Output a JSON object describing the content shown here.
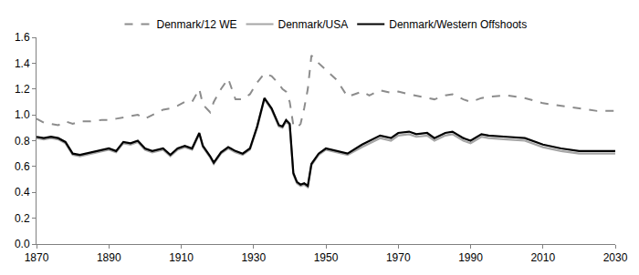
{
  "chart_data": {
    "type": "line",
    "x": [
      1870,
      1872,
      1874,
      1876,
      1878,
      1880,
      1882,
      1885,
      1888,
      1890,
      1892,
      1894,
      1896,
      1898,
      1900,
      1902,
      1905,
      1907,
      1909,
      1911,
      1913,
      1915,
      1916,
      1918,
      1919,
      1921,
      1923,
      1925,
      1927,
      1929,
      1931,
      1933,
      1935,
      1937,
      1938,
      1939,
      1940,
      1941,
      1942,
      1943,
      1944,
      1945,
      1946,
      1948,
      1950,
      1953,
      1956,
      1960,
      1962,
      1965,
      1968,
      1970,
      1973,
      1975,
      1978,
      1980,
      1983,
      1985,
      1988,
      1990,
      1993,
      1995,
      2000,
      2005,
      2010,
      2015,
      2020,
      2025,
      2030
    ],
    "series": [
      {
        "name": "Denmark/12 WE",
        "color": "#8c8c8c",
        "line_style": "dashed",
        "values": [
          0.97,
          0.94,
          0.93,
          0.92,
          0.95,
          0.93,
          0.95,
          0.95,
          0.96,
          0.96,
          0.97,
          0.98,
          0.99,
          1.0,
          0.97,
          1.0,
          1.04,
          1.05,
          1.07,
          1.1,
          1.1,
          1.2,
          1.08,
          1.02,
          1.1,
          1.2,
          1.28,
          1.12,
          1.12,
          1.16,
          1.25,
          1.32,
          1.3,
          1.24,
          1.2,
          1.18,
          1.1,
          0.92,
          0.9,
          0.93,
          1.05,
          1.2,
          1.46,
          1.4,
          1.35,
          1.27,
          1.14,
          1.18,
          1.15,
          1.19,
          1.17,
          1.18,
          1.16,
          1.15,
          1.13,
          1.12,
          1.15,
          1.16,
          1.12,
          1.1,
          1.13,
          1.14,
          1.15,
          1.13,
          1.09,
          1.07,
          1.05,
          1.03,
          1.03
        ]
      },
      {
        "name": "Denmark/USA",
        "color": "#a6a6a6",
        "line_style": "solid",
        "values": [
          0.82,
          0.81,
          0.82,
          0.81,
          0.78,
          0.69,
          0.68,
          0.7,
          0.72,
          0.73,
          0.71,
          0.78,
          0.77,
          0.79,
          0.73,
          0.71,
          0.73,
          0.68,
          0.73,
          0.75,
          0.73,
          0.85,
          0.75,
          0.67,
          0.62,
          0.7,
          0.74,
          0.71,
          0.69,
          0.73,
          0.9,
          1.12,
          1.04,
          0.91,
          0.9,
          0.95,
          0.92,
          0.54,
          0.47,
          0.45,
          0.46,
          0.44,
          0.61,
          0.69,
          0.73,
          0.71,
          0.69,
          0.75,
          0.78,
          0.82,
          0.8,
          0.84,
          0.85,
          0.83,
          0.84,
          0.8,
          0.84,
          0.85,
          0.8,
          0.78,
          0.83,
          0.82,
          0.81,
          0.8,
          0.75,
          0.72,
          0.7,
          0.7,
          0.7
        ]
      },
      {
        "name": "Denmark/Western Offshoots",
        "color": "#000000",
        "line_style": "solid",
        "values": [
          0.83,
          0.82,
          0.83,
          0.82,
          0.79,
          0.7,
          0.69,
          0.71,
          0.73,
          0.74,
          0.72,
          0.79,
          0.78,
          0.8,
          0.74,
          0.72,
          0.74,
          0.69,
          0.74,
          0.76,
          0.74,
          0.86,
          0.76,
          0.68,
          0.63,
          0.71,
          0.75,
          0.72,
          0.7,
          0.74,
          0.91,
          1.13,
          1.05,
          0.92,
          0.91,
          0.96,
          0.93,
          0.55,
          0.48,
          0.46,
          0.47,
          0.45,
          0.62,
          0.7,
          0.74,
          0.72,
          0.7,
          0.77,
          0.8,
          0.84,
          0.82,
          0.86,
          0.87,
          0.85,
          0.86,
          0.82,
          0.86,
          0.87,
          0.82,
          0.8,
          0.85,
          0.84,
          0.83,
          0.82,
          0.77,
          0.74,
          0.72,
          0.72,
          0.72
        ]
      }
    ],
    "xlim": [
      1870,
      2030
    ],
    "xticks": [
      1870,
      1890,
      1910,
      1930,
      1950,
      1970,
      1990,
      2010,
      2030
    ],
    "ylim": [
      0,
      1.6
    ],
    "yticks": [
      {
        "value": 0,
        "label": "0.0"
      },
      0.2,
      0.4,
      0.6,
      0.8,
      {
        "value": 1,
        "label": "1.0"
      },
      1.2,
      1.4,
      1.6
    ],
    "grid": false,
    "legend": "top"
  }
}
